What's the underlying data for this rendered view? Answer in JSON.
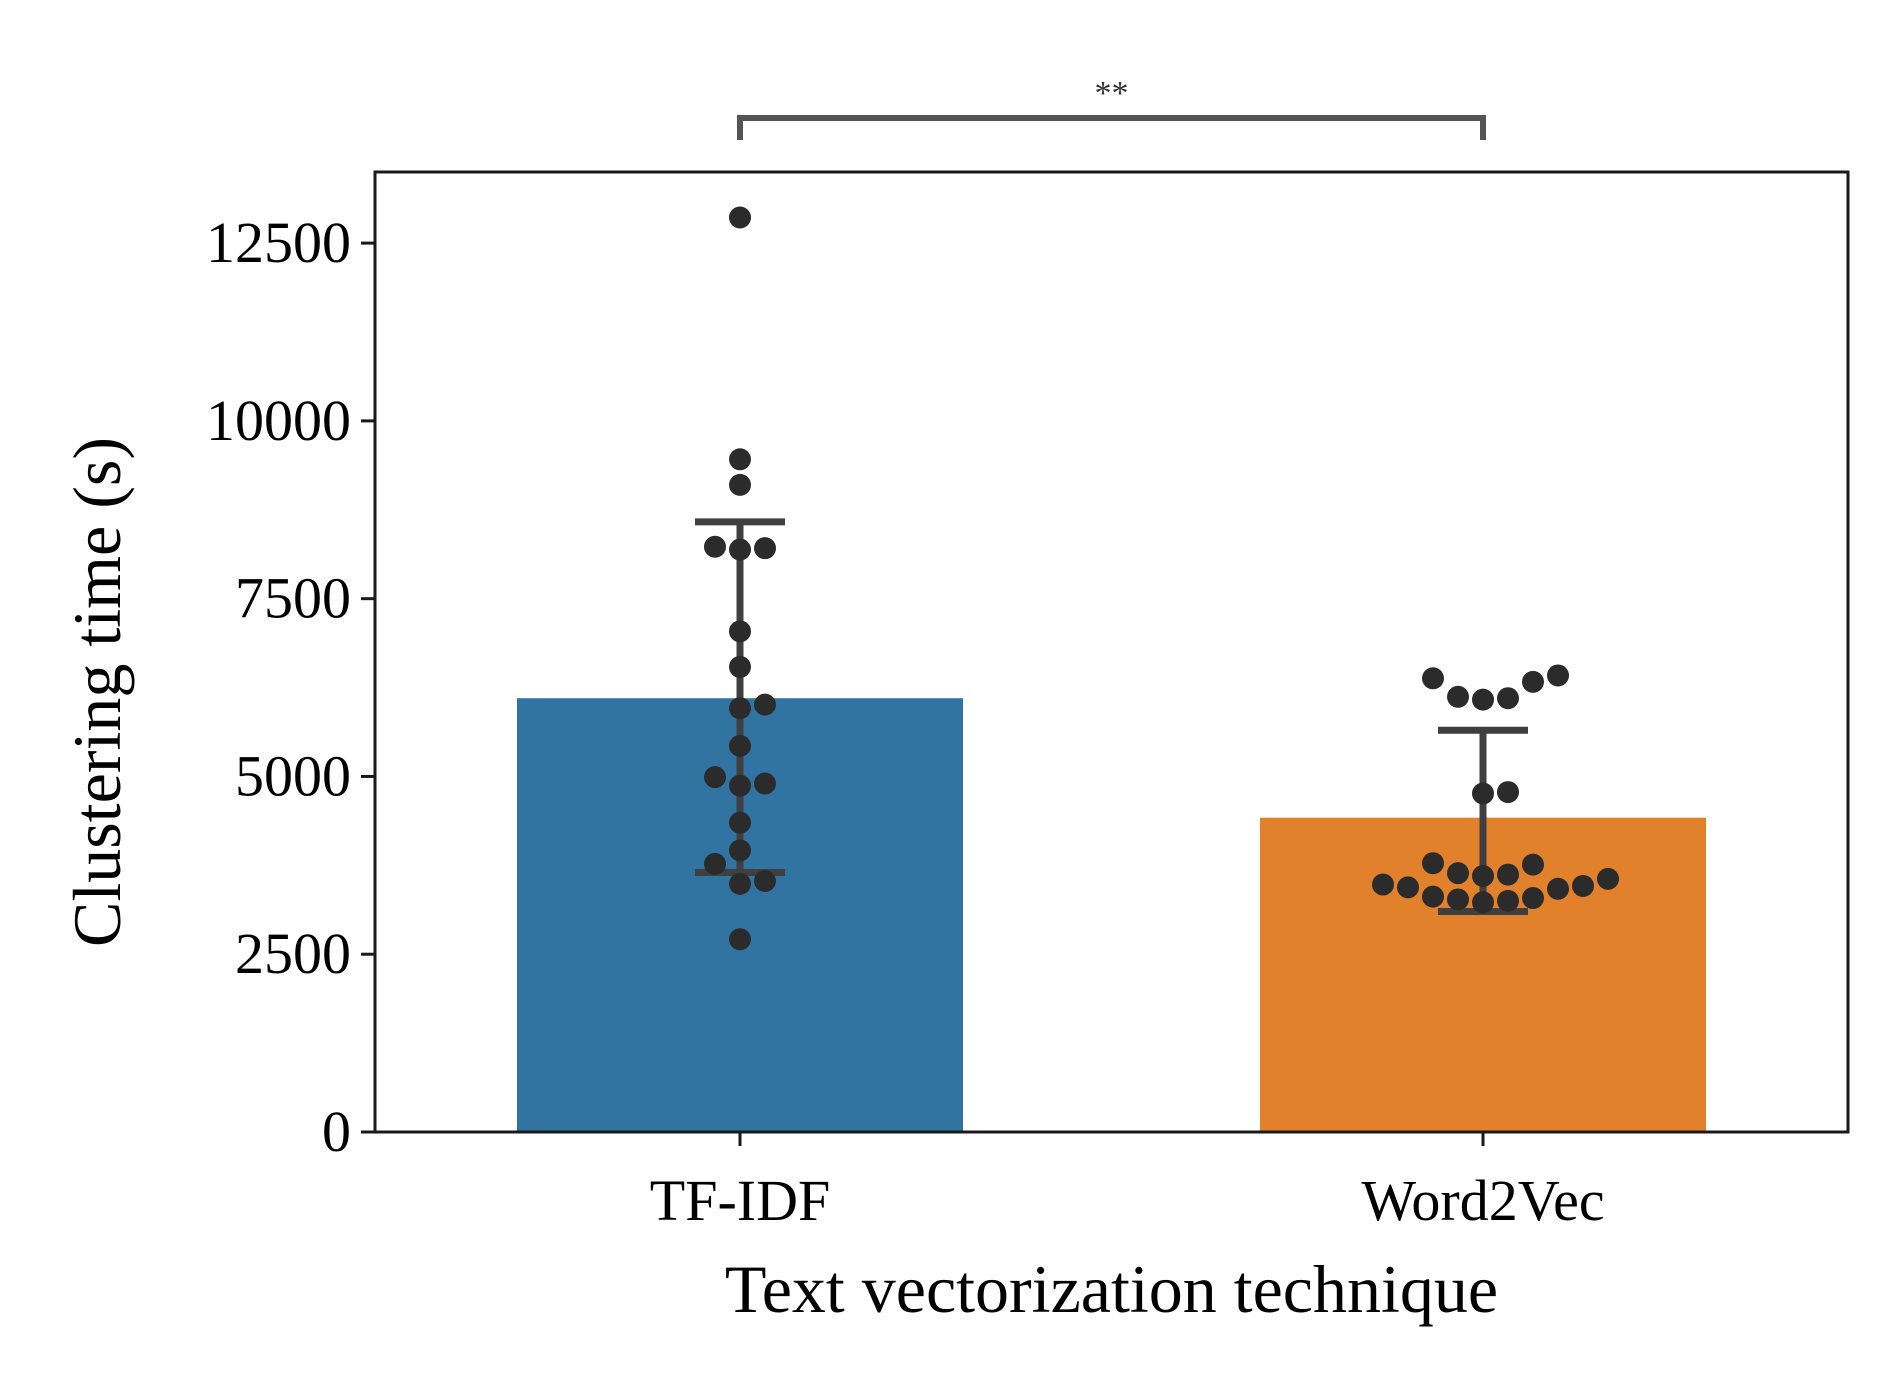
{
  "chart_data": {
    "type": "bar",
    "categories": [
      "TF-IDF",
      "Word2Vec"
    ],
    "values": [
      6100,
      4420
    ],
    "error_bars": [
      {
        "low": 3650,
        "high": 8580
      },
      {
        "low": 3100,
        "high": 5650
      }
    ],
    "points": [
      [
        12860,
        9460,
        9100,
        8230,
        8210,
        8190,
        7040,
        6540,
        6010,
        5960,
        5430,
        4990,
        4900,
        4870,
        4350,
        3960,
        3770,
        3530,
        3490,
        2710
      ],
      [
        6420,
        6380,
        6330,
        6120,
        6100,
        6080,
        4780,
        4760,
        3780,
        3760,
        3640,
        3620,
        3600,
        3560,
        3480,
        3460,
        3440,
        3420,
        3310,
        3290,
        3270,
        3250,
        3230
      ]
    ],
    "colors": [
      "#3274a1",
      "#e1812c"
    ],
    "point_color": "#2b2b2b",
    "error_color": "#3f3f3f",
    "xlabel": "Text vectorization technique",
    "ylabel": "Clustering time (s)",
    "ylim": [
      0,
      13500
    ],
    "yticks": [
      "0",
      "2500",
      "5000",
      "7500",
      "10000",
      "12500"
    ],
    "significance": {
      "label": "**",
      "from": 0,
      "to": 1
    },
    "grid": false,
    "legend": "none"
  }
}
